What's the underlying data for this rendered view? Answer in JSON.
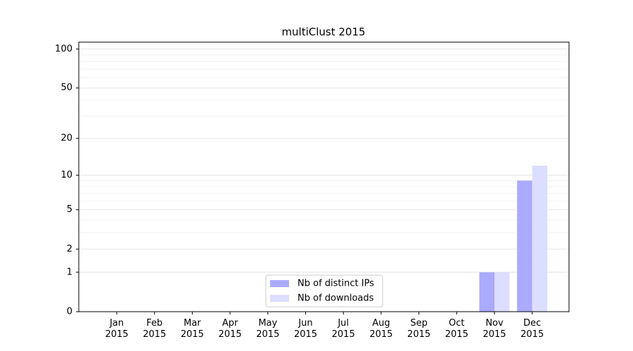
{
  "chart_data": {
    "type": "bar",
    "title": "multiClust 2015",
    "categories": [
      "Jan 2015",
      "Feb 2015",
      "Mar 2015",
      "Apr 2015",
      "May 2015",
      "Jun 2015",
      "Jul 2015",
      "Aug 2015",
      "Sep 2015",
      "Oct 2015",
      "Nov 2015",
      "Dec 2015"
    ],
    "series": [
      {
        "name": "Nb of distinct IPs",
        "color": "#aaaaff",
        "values": [
          0,
          0,
          0,
          0,
          0,
          0,
          0,
          0,
          0,
          0,
          1,
          9
        ]
      },
      {
        "name": "Nb of downloads",
        "color": "#ddddff",
        "values": [
          0,
          0,
          0,
          0,
          0,
          0,
          0,
          0,
          0,
          0,
          1,
          12
        ]
      }
    ],
    "yscale": "log1p",
    "ylim": [
      0,
      113
    ],
    "yticks": [
      0,
      1,
      2,
      5,
      10,
      20,
      50,
      100
    ],
    "yminorticks": [
      3,
      4,
      6,
      7,
      8,
      9,
      30,
      40,
      60,
      70,
      80,
      90
    ],
    "grid": true,
    "legend": "lower center"
  }
}
